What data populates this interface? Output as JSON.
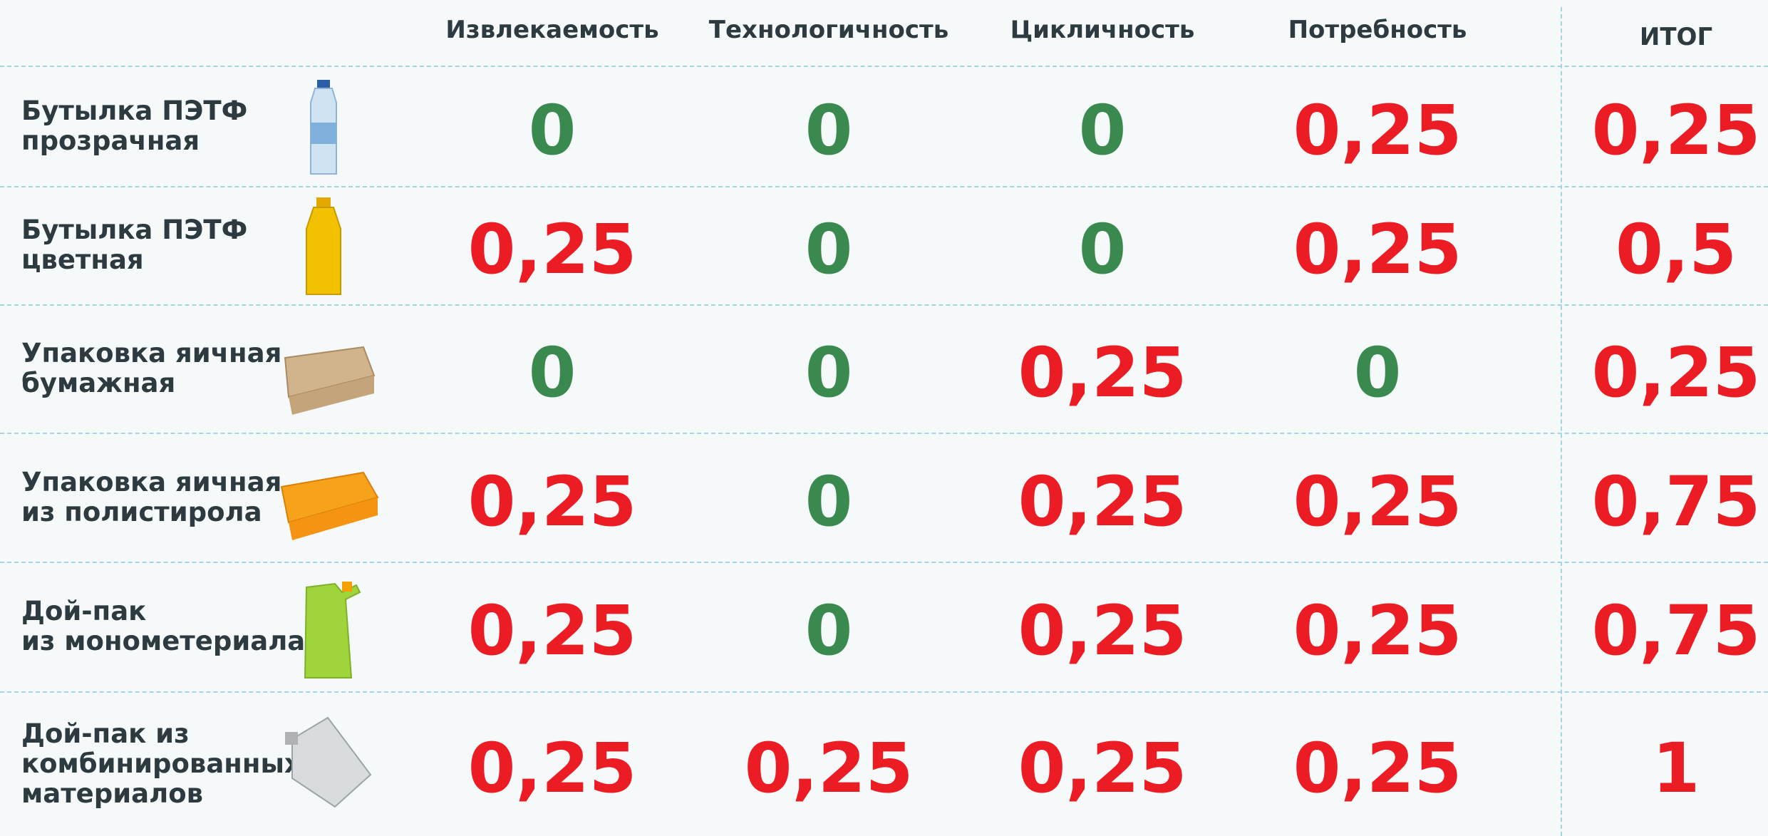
{
  "table": {
    "header": [
      "Извлекаемость",
      "Технологичность",
      "Цикличность",
      "Потребность",
      "ИТОГ"
    ],
    "rows": [
      {
        "label": "Бутылка ПЭТФ\nпрозрачная",
        "cells": [
          "0",
          "0",
          "0",
          "0,25",
          "0,25"
        ]
      },
      {
        "label": "Бутылка ПЭТФ\nцветная",
        "cells": [
          "0,25",
          "0",
          "0",
          "0,25",
          "0,5"
        ]
      },
      {
        "label": "Упаковка яичная\nбумажная",
        "cells": [
          "0",
          "0",
          "0,25",
          "0",
          "0,25"
        ]
      },
      {
        "label": "Упаковка яичная\nиз полистирола",
        "cells": [
          "0,25",
          "0",
          "0,25",
          "0,25",
          "0,75"
        ]
      },
      {
        "label": "Дой-пак\nиз монометериала",
        "cells": [
          "0,25",
          "0",
          "0,25",
          "0,25",
          "0,75"
        ]
      },
      {
        "label": "Дой-пак из\nкомбинированных\nматериалов",
        "cells": [
          "0,25",
          "0,25",
          "0,25",
          "0,25",
          "1"
        ]
      }
    ]
  },
  "colors": {
    "zero": "#3a8a4f",
    "nonzero": "#ec1c24"
  }
}
